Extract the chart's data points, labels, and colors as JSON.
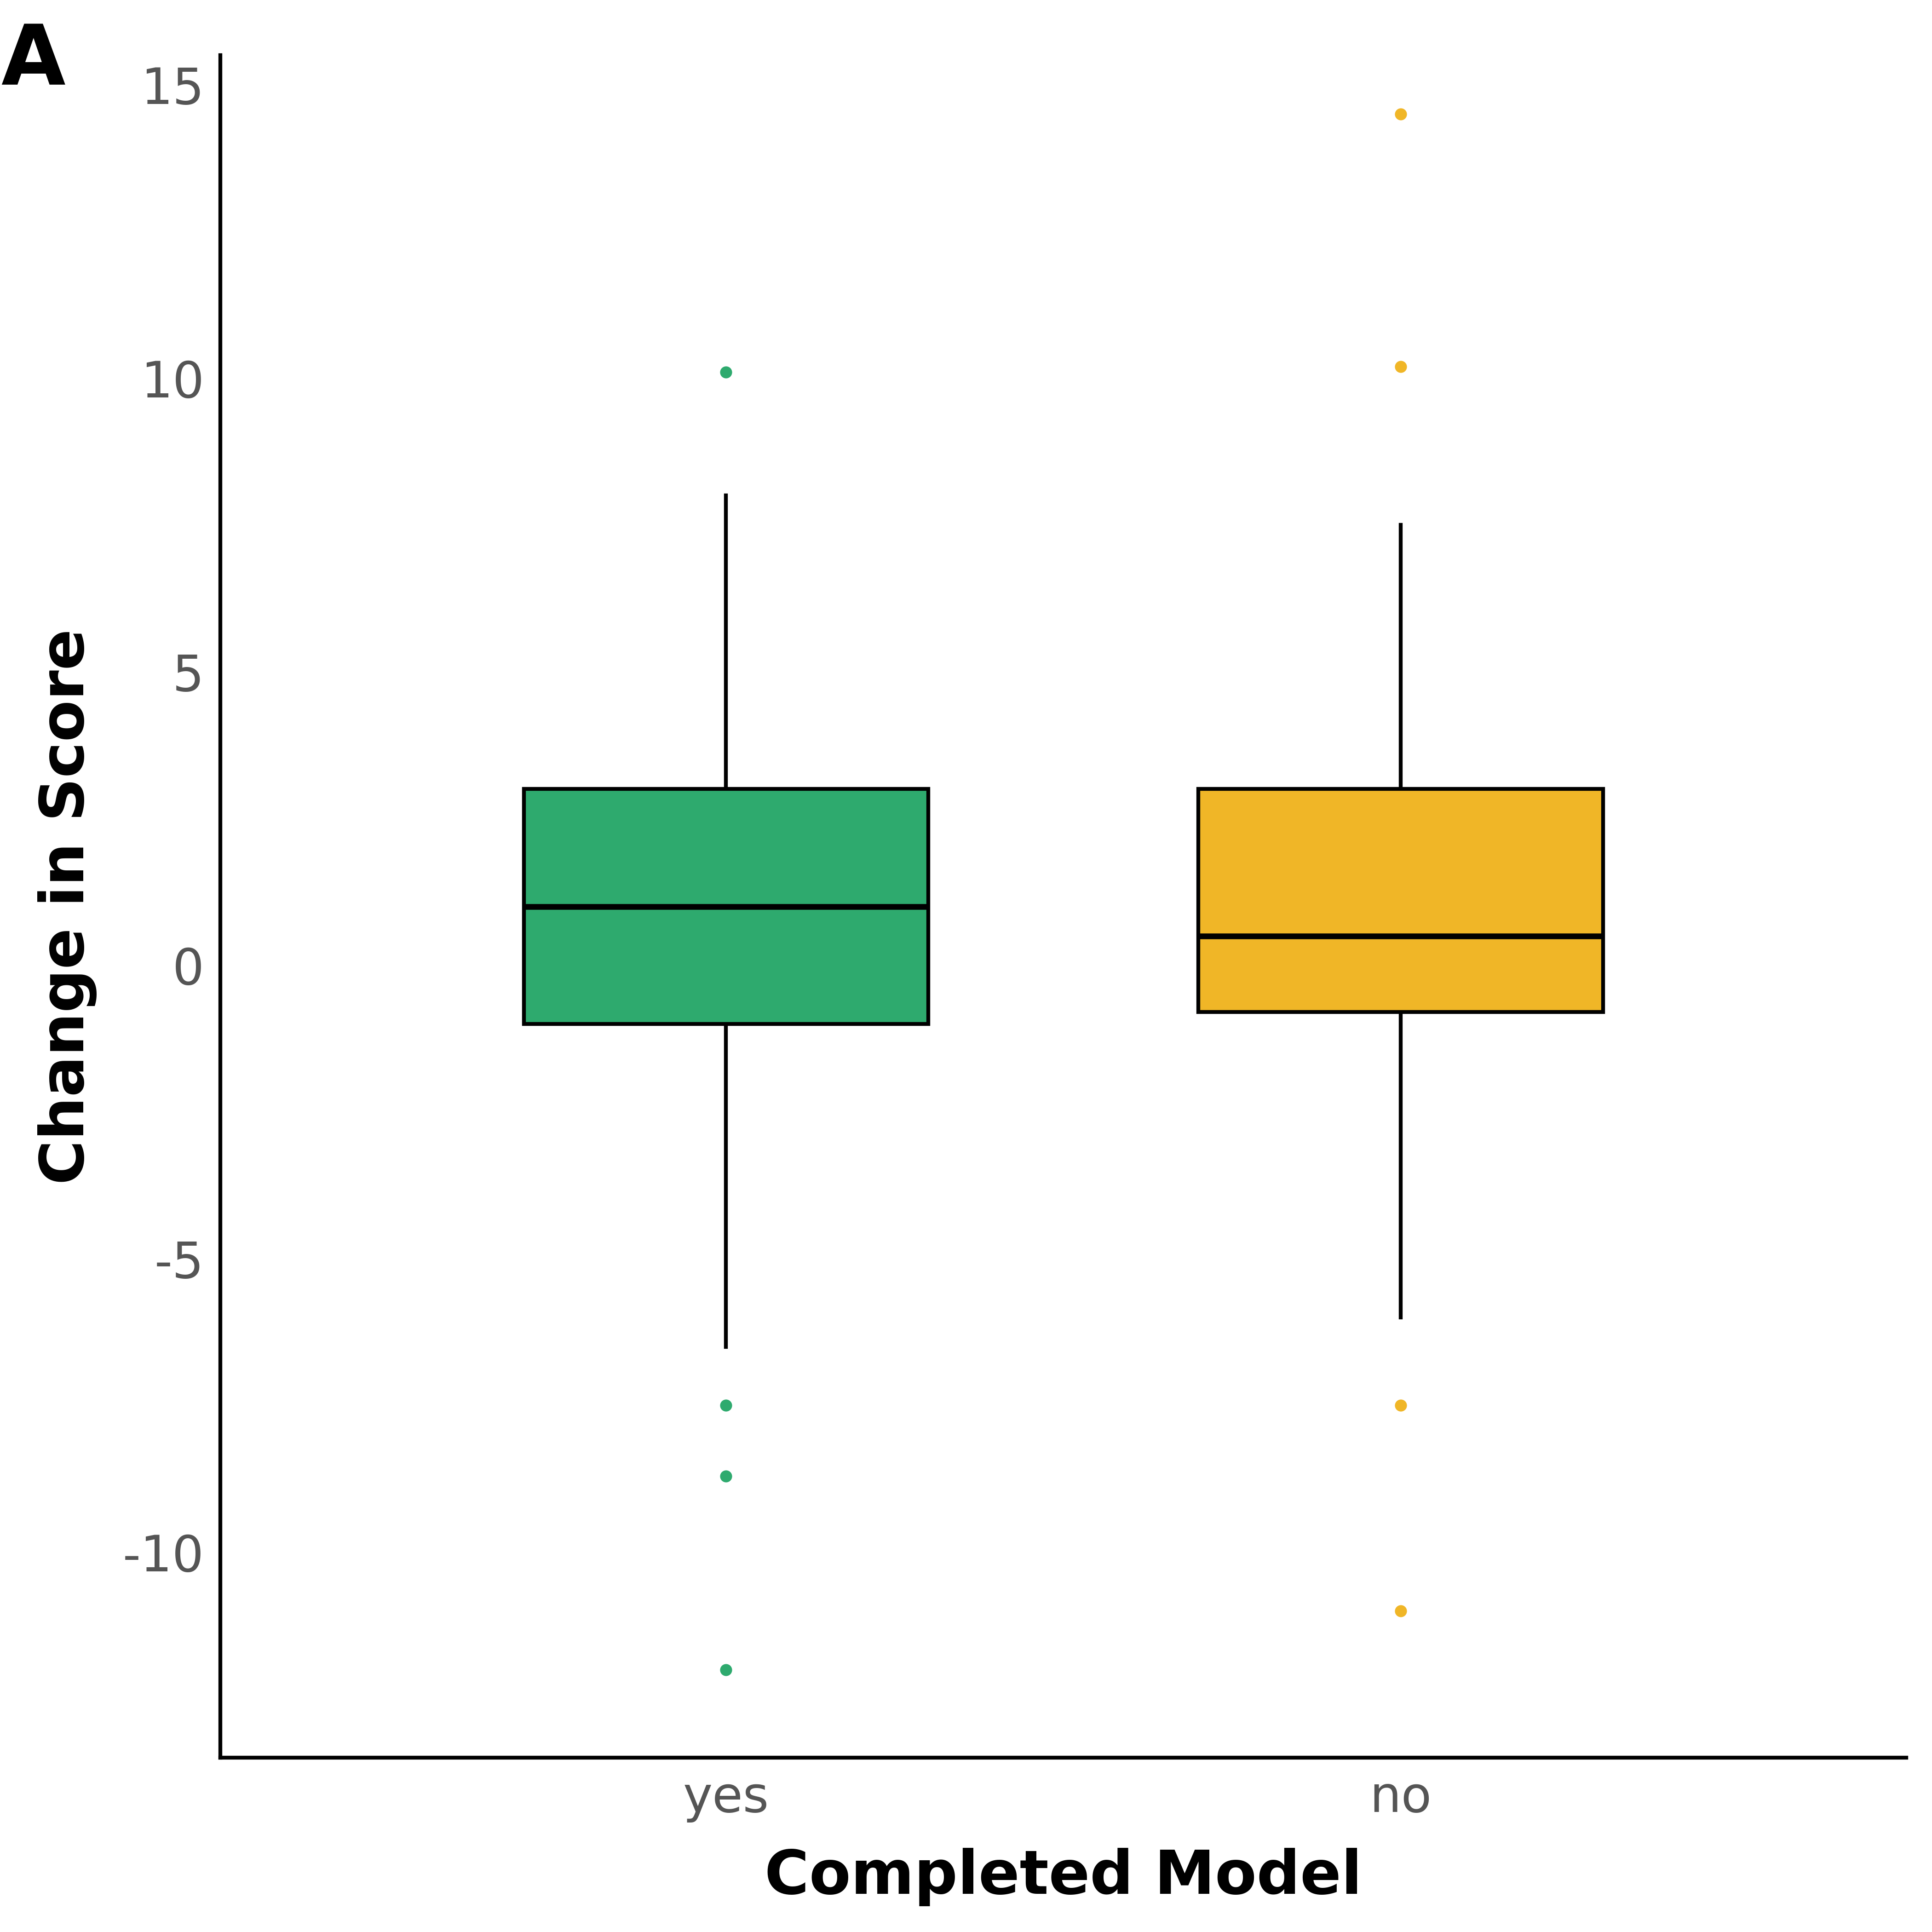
{
  "title": "",
  "panel_label": "A",
  "xlabel": "Completed Model",
  "ylabel": "Change in Score",
  "background_color": "#ffffff",
  "ylim": [
    -13.5,
    15.5
  ],
  "yticks": [
    -10,
    -5,
    0,
    5,
    10,
    15
  ],
  "categories": [
    "yes",
    "no"
  ],
  "box_colors": [
    "#2EAA6E",
    "#F0B627"
  ],
  "box_data": {
    "yes": {
      "q1": -1.0,
      "median": 1.0,
      "q3": 3.0,
      "whisker_low": -6.5,
      "whisker_high": 8.0,
      "fliers": [
        10.1,
        -7.5,
        -8.7,
        -12.0
      ]
    },
    "no": {
      "q1": -0.8,
      "median": 0.5,
      "q3": 3.0,
      "whisker_low": -6.0,
      "whisker_high": 7.5,
      "fliers": [
        14.5,
        10.2,
        -7.5,
        -11.0
      ]
    }
  },
  "box_width": 0.6,
  "linewidth": 6,
  "median_linewidth": 9,
  "flier_size": 300,
  "label_fontsize": 95,
  "tick_fontsize": 78,
  "panel_fontsize": 130,
  "axis_linewidth": 6,
  "tick_color": "#555555"
}
